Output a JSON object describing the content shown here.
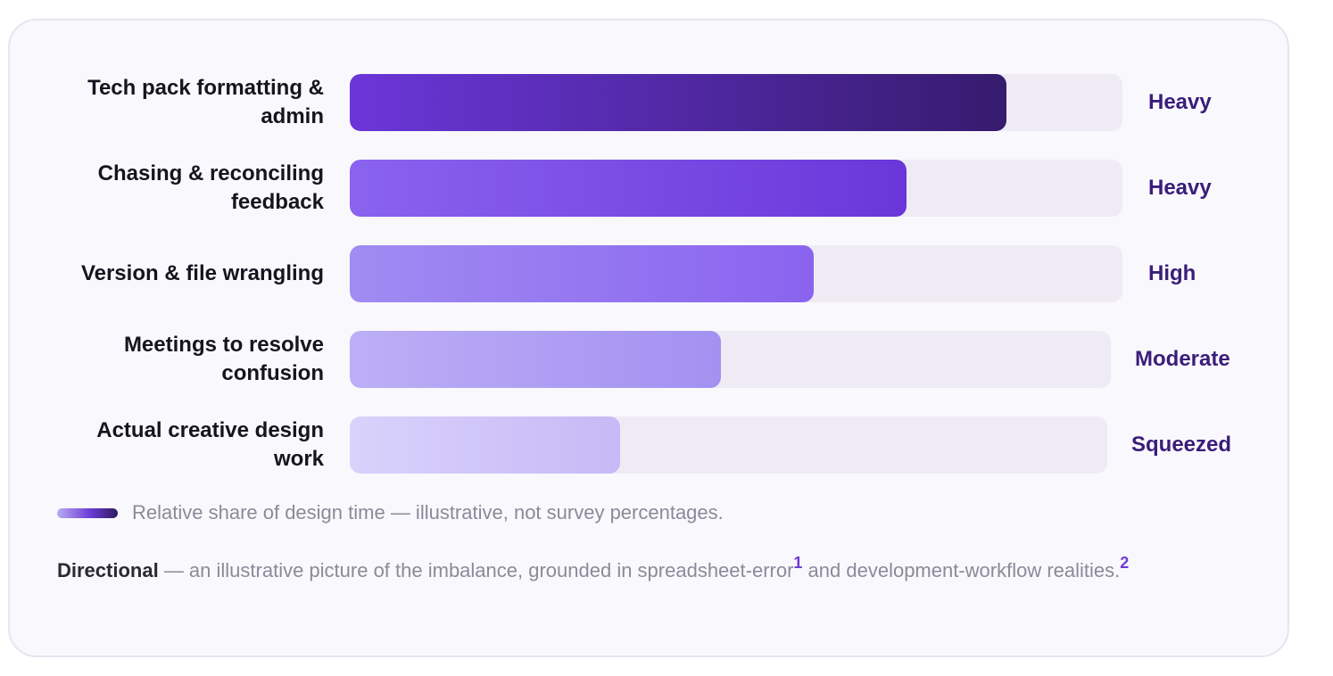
{
  "chart_data": {
    "type": "bar",
    "orientation": "horizontal",
    "categories": [
      "Tech pack formatting & admin",
      "Chasing & reconciling feedback",
      "Version & file wrangling",
      "Meetings to resolve confusion",
      "Actual creative design work"
    ],
    "values": [
      0.85,
      0.72,
      0.6,
      0.48,
      0.35
    ],
    "value_labels": [
      "Heavy",
      "Heavy",
      "High",
      "Moderate",
      "Squeezed"
    ],
    "colors": [
      [
        "#6b36d9",
        "#361b6e"
      ],
      [
        "#8a63ef",
        "#6a36d9"
      ],
      [
        "#a08cf2",
        "#8a63ef"
      ],
      [
        "#bcaef6",
        "#a391f1"
      ],
      [
        "#d9d2fb",
        "#c6b9f6"
      ]
    ],
    "track_color": "#eeebf5",
    "xlim": [
      0,
      1
    ],
    "grid": false
  },
  "legend": {
    "text": "Relative share of design time — illustrative, not survey percentages."
  },
  "note": {
    "bold": "Directional",
    "text_a": " — an illustrative picture of the imbalance, grounded in spreadsheet-error",
    "ref1": "1",
    "text_b": " and development-workflow realities.",
    "ref2": "2"
  },
  "colors": {
    "card_background": "#f9f8fc",
    "label_text": "#16141f",
    "level_text": "#3a1d7a",
    "muted_text": "#8c8a99",
    "reference": "#6d3ad6"
  }
}
